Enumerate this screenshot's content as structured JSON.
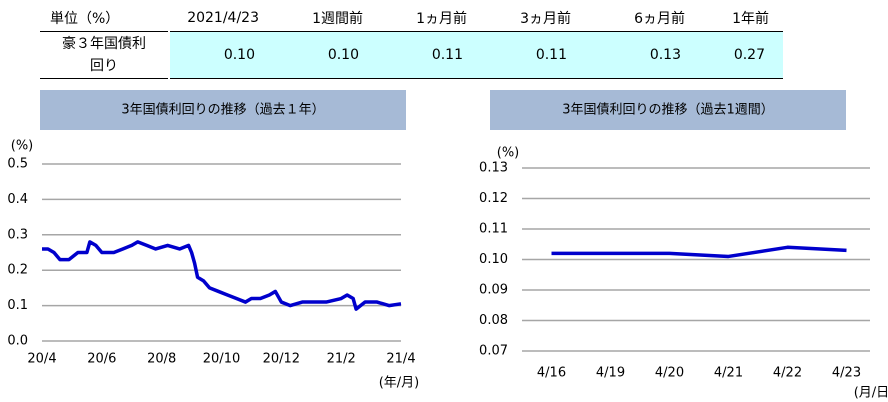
{
  "table": {
    "header": [
      "単位（%）",
      "2021/4/23",
      "1週間前",
      "1ヵ月前",
      "3ヵ月前",
      "6ヵ月前",
      "1年前"
    ],
    "rows": [
      [
        "豪３年国債利回り",
        "0.10",
        "0.10",
        "0.11",
        "0.11",
        "0.13",
        "0.27"
      ]
    ]
  },
  "chart_data": [
    {
      "type": "line",
      "title": "3年国債利回りの推移（過去１年）",
      "y_label": "(%)",
      "x_label": "(年/月)",
      "color": "#0000cc",
      "grid": true,
      "x": [
        0,
        0.2,
        0.4,
        0.6,
        0.9,
        1.2,
        1.5,
        1.6,
        1.8,
        2.0,
        2.4,
        2.7,
        3.0,
        3.2,
        3.5,
        3.8,
        4.2,
        4.6,
        4.9,
        5.0,
        5.1,
        5.2,
        5.4,
        5.6,
        5.9,
        6.2,
        6.5,
        6.8,
        7.0,
        7.3,
        7.6,
        7.8,
        8.0,
        8.3,
        8.7,
        9.0,
        9.5,
        10.0,
        10.2,
        10.4,
        10.5,
        10.8,
        11.2,
        11.6,
        12.0
      ],
      "values": [
        0.26,
        0.26,
        0.25,
        0.23,
        0.23,
        0.25,
        0.25,
        0.28,
        0.27,
        0.25,
        0.25,
        0.26,
        0.27,
        0.28,
        0.27,
        0.26,
        0.27,
        0.26,
        0.27,
        0.25,
        0.22,
        0.18,
        0.17,
        0.15,
        0.14,
        0.13,
        0.12,
        0.11,
        0.12,
        0.12,
        0.13,
        0.14,
        0.11,
        0.1,
        0.11,
        0.11,
        0.11,
        0.12,
        0.13,
        0.12,
        0.09,
        0.11,
        0.11,
        0.1,
        0.105
      ],
      "xlim": [
        0,
        12
      ],
      "xticks": [
        {
          "value": 0,
          "label": "20/4"
        },
        {
          "value": 2,
          "label": "20/6"
        },
        {
          "value": 4,
          "label": "20/8"
        },
        {
          "value": 6,
          "label": "20/10"
        },
        {
          "value": 8,
          "label": "20/12"
        },
        {
          "value": 10,
          "label": "21/2"
        },
        {
          "value": 12,
          "label": "21/4"
        }
      ],
      "ylim": [
        0,
        0.5
      ],
      "yticks": [
        {
          "value": 0,
          "label": "0.0"
        },
        0.1,
        0.2,
        0.3,
        0.4,
        0.5
      ]
    },
    {
      "type": "line",
      "title": "3年国債利回りの推移（過去1週間）",
      "y_label": "(%)",
      "x_label": "(月/日)",
      "color": "#0000cc",
      "grid": true,
      "categories": [
        "4/16",
        "4/19",
        "4/20",
        "4/21",
        "4/22",
        "4/23"
      ],
      "values": [
        0.102,
        0.102,
        0.102,
        0.101,
        0.104,
        0.103
      ],
      "ylim": [
        0.07,
        0.13
      ],
      "yticks": [
        0.07,
        0.08,
        0.09,
        {
          "value": 0.1,
          "label": "0.10"
        },
        0.11,
        0.12,
        0.13
      ]
    }
  ]
}
